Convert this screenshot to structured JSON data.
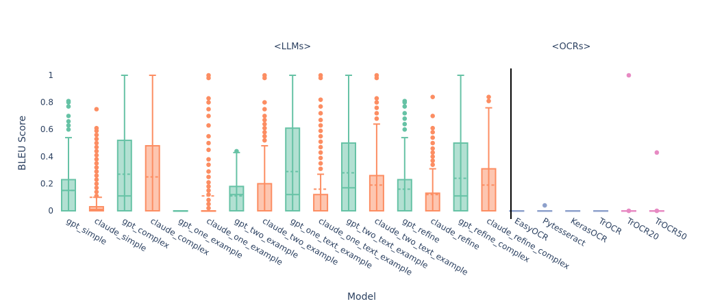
{
  "chart_data": {
    "type": "box",
    "xlabel": "Model",
    "ylabel": "BLEU Score",
    "ylim": [
      0,
      1.05
    ],
    "yticks": [
      "0",
      "0.2",
      "0.4",
      "0.6",
      "0.8",
      "1"
    ],
    "ytick_values": [
      0,
      0.2,
      0.4,
      0.6,
      0.8,
      1
    ],
    "group_labels": [
      {
        "label": "<LLMs>",
        "categories": [
          "gpt_simple",
          "claude_simple",
          "gpt_complex",
          "claude_complex",
          "gpt_one_example",
          "claude_one_example",
          "gpt_two_example",
          "claude_two_example",
          "gpt_one_text_example",
          "claude_one_text_example",
          "gpt_two_text_example",
          "claude_two_text_example",
          "gpt_refine",
          "claude_refine",
          "gpt_refine_complex",
          "claude_refine_complex"
        ]
      },
      {
        "label": "<OCRs>",
        "categories": [
          "EasyOCR",
          "Pytesseract",
          "KerasOCR",
          "TrOCR",
          "TrOCR20",
          "TrOCR50"
        ]
      }
    ],
    "grid": false,
    "colors": {
      "gpt": "#66c2a5",
      "claude": "#fc8d62",
      "ocr_blue": "#8da0cb",
      "ocr_pink": "#e78ac3",
      "divider": "#000000"
    },
    "series": [
      {
        "category": "gpt_simple",
        "color_key": "gpt",
        "min": 0,
        "q1": 0,
        "median": 0.15,
        "q3": 0.23,
        "max": 0.54,
        "mean": 0.15,
        "outliers": [
          0.6,
          0.63,
          0.66,
          0.7,
          0.77,
          0.8,
          0.81
        ]
      },
      {
        "category": "claude_simple",
        "color_key": "claude",
        "min": 0,
        "q1": 0,
        "median": 0.01,
        "q3": 0.03,
        "max": 0.1,
        "mean": 0.1,
        "outliers": [
          0.11,
          0.14,
          0.17,
          0.2,
          0.23,
          0.26,
          0.29,
          0.32,
          0.35,
          0.38,
          0.41,
          0.44,
          0.47,
          0.5,
          0.53,
          0.56,
          0.59,
          0.61,
          0.75
        ]
      },
      {
        "category": "gpt_complex",
        "color_key": "gpt",
        "min": 0,
        "q1": 0,
        "median": 0.11,
        "q3": 0.52,
        "max": 1.0,
        "mean": 0.27,
        "outliers": []
      },
      {
        "category": "claude_complex",
        "color_key": "claude",
        "min": 0,
        "q1": 0,
        "median": 0,
        "q3": 0.48,
        "max": 1.0,
        "mean": 0.25,
        "outliers": []
      },
      {
        "category": "gpt_one_example",
        "color_key": "gpt",
        "min": 0,
        "q1": 0,
        "median": 0,
        "q3": 0,
        "max": 0,
        "mean": 0,
        "outliers": []
      },
      {
        "category": "claude_one_example",
        "color_key": "claude",
        "min": 0,
        "q1": 0,
        "median": 0,
        "q3": 0,
        "max": 0,
        "mean": 0.11,
        "outliers": [
          0.02,
          0.05,
          0.08,
          0.12,
          0.15,
          0.18,
          0.21,
          0.25,
          0.29,
          0.34,
          0.38,
          0.45,
          0.5,
          0.55,
          0.63,
          0.7,
          0.75,
          0.8,
          0.83,
          0.98,
          1.0
        ]
      },
      {
        "category": "gpt_two_example",
        "color_key": "gpt",
        "min": 0,
        "q1": 0,
        "median": 0.12,
        "q3": 0.18,
        "max": 0.43,
        "mean": 0.11,
        "outliers": [
          0.44
        ]
      },
      {
        "category": "claude_two_example",
        "color_key": "claude",
        "min": 0,
        "q1": 0,
        "median": 0,
        "q3": 0.2,
        "max": 0.48,
        "mean": 0,
        "outliers": [
          0.52,
          0.55,
          0.58,
          0.61,
          0.64,
          0.67,
          0.7,
          0.75,
          0.8,
          0.98,
          1.0
        ]
      },
      {
        "category": "gpt_one_text_example",
        "color_key": "gpt",
        "min": 0,
        "q1": 0,
        "median": 0.12,
        "q3": 0.61,
        "max": 1.0,
        "mean": 0.29,
        "outliers": []
      },
      {
        "category": "claude_one_text_example",
        "color_key": "claude",
        "min": 0,
        "q1": 0,
        "median": 0,
        "q3": 0.12,
        "max": 0.27,
        "mean": 0.16,
        "outliers": [
          0.31,
          0.35,
          0.39,
          0.43,
          0.47,
          0.51,
          0.55,
          0.59,
          0.63,
          0.67,
          0.72,
          0.77,
          0.82,
          0.98,
          1.0
        ]
      },
      {
        "category": "gpt_two_text_example",
        "color_key": "gpt",
        "min": 0,
        "q1": 0,
        "median": 0.17,
        "q3": 0.5,
        "max": 1.0,
        "mean": 0.28,
        "outliers": []
      },
      {
        "category": "claude_two_text_example",
        "color_key": "claude",
        "min": 0,
        "q1": 0,
        "median": 0,
        "q3": 0.26,
        "max": 0.64,
        "mean": 0.19,
        "outliers": [
          0.68,
          0.72,
          0.76,
          0.8,
          0.83,
          0.98,
          1.0
        ]
      },
      {
        "category": "gpt_refine",
        "color_key": "gpt",
        "min": 0,
        "q1": 0,
        "median": 0,
        "q3": 0.23,
        "max": 0.54,
        "mean": 0.16,
        "outliers": [
          0.6,
          0.64,
          0.68,
          0.72,
          0.77,
          0.8,
          0.81
        ]
      },
      {
        "category": "claude_refine",
        "color_key": "claude",
        "min": 0,
        "q1": 0,
        "median": 0,
        "q3": 0.13,
        "max": 0.31,
        "mean": 0.12,
        "outliers": [
          0.34,
          0.37,
          0.4,
          0.43,
          0.46,
          0.5,
          0.54,
          0.58,
          0.61,
          0.7,
          0.84
        ]
      },
      {
        "category": "gpt_refine_complex",
        "color_key": "gpt",
        "min": 0,
        "q1": 0,
        "median": 0.11,
        "q3": 0.5,
        "max": 1.0,
        "mean": 0.24,
        "outliers": []
      },
      {
        "category": "claude_refine_complex",
        "color_key": "claude",
        "min": 0,
        "q1": 0,
        "median": 0,
        "q3": 0.31,
        "max": 0.76,
        "mean": 0.19,
        "outliers": [
          0.81,
          0.84
        ]
      },
      {
        "category": "EasyOCR",
        "color_key": "ocr_blue",
        "min": 0,
        "q1": 0,
        "median": 0,
        "q3": 0,
        "max": 0,
        "mean": 0,
        "outliers": []
      },
      {
        "category": "Pytesseract",
        "color_key": "ocr_blue",
        "min": 0,
        "q1": 0,
        "median": 0,
        "q3": 0,
        "max": 0,
        "mean": 0,
        "outliers": [
          0.04
        ]
      },
      {
        "category": "KerasOCR",
        "color_key": "ocr_blue",
        "min": 0,
        "q1": 0,
        "median": 0,
        "q3": 0,
        "max": 0,
        "mean": 0,
        "outliers": []
      },
      {
        "category": "TrOCR",
        "color_key": "ocr_blue",
        "min": 0,
        "q1": 0,
        "median": 0,
        "q3": 0,
        "max": 0,
        "mean": 0,
        "outliers": []
      },
      {
        "category": "TrOCR20",
        "color_key": "ocr_pink",
        "min": 0,
        "q1": 0,
        "median": 0,
        "q3": 0,
        "max": 0,
        "mean": 0,
        "outliers": [
          0,
          0,
          1.0
        ]
      },
      {
        "category": "TrOCR50",
        "color_key": "ocr_pink",
        "min": 0,
        "q1": 0,
        "median": 0,
        "q3": 0,
        "max": 0,
        "mean": 0,
        "outliers": [
          0,
          0,
          0.43
        ]
      }
    ]
  }
}
